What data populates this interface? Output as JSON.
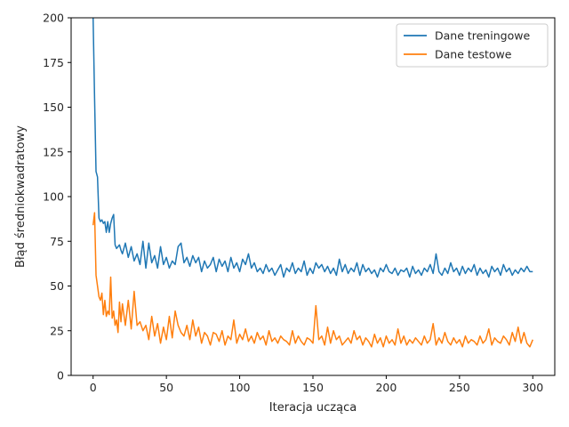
{
  "chart_data": {
    "type": "line",
    "title": "",
    "xlabel": "Iteracja ucząca",
    "ylabel": "Błąd średniokwadratowy",
    "xlim": [
      -15,
      315
    ],
    "ylim": [
      0,
      200
    ],
    "xticks": [
      0,
      50,
      100,
      150,
      200,
      250,
      300
    ],
    "yticks": [
      0,
      25,
      50,
      75,
      100,
      125,
      150,
      175,
      200
    ],
    "grid": false,
    "legend_position": "top-right",
    "series": [
      {
        "name": "Dane treningowe",
        "color": "#1f77b4",
        "x": [
          0,
          1,
          2,
          3,
          4,
          5,
          6,
          7,
          8,
          9,
          10,
          11,
          12,
          13,
          14,
          15,
          16,
          17,
          18,
          19,
          20,
          22,
          24,
          26,
          28,
          30,
          32,
          34,
          36,
          38,
          40,
          42,
          44,
          46,
          48,
          50,
          52,
          54,
          56,
          58,
          60,
          62,
          64,
          66,
          68,
          70,
          72,
          74,
          76,
          78,
          80,
          82,
          84,
          86,
          88,
          90,
          92,
          94,
          96,
          98,
          100,
          102,
          104,
          106,
          108,
          110,
          112,
          114,
          116,
          118,
          120,
          122,
          124,
          126,
          128,
          130,
          132,
          134,
          136,
          138,
          140,
          142,
          144,
          146,
          148,
          150,
          152,
          154,
          156,
          158,
          160,
          162,
          164,
          166,
          168,
          170,
          172,
          174,
          176,
          178,
          180,
          182,
          184,
          186,
          188,
          190,
          192,
          194,
          196,
          198,
          200,
          202,
          204,
          206,
          208,
          210,
          212,
          214,
          216,
          218,
          220,
          222,
          224,
          226,
          228,
          230,
          232,
          234,
          236,
          238,
          240,
          242,
          244,
          246,
          248,
          250,
          252,
          254,
          256,
          258,
          260,
          262,
          264,
          266,
          268,
          270,
          272,
          274,
          276,
          278,
          280,
          282,
          284,
          286,
          288,
          290,
          292,
          294,
          296,
          298,
          300
        ],
        "y": [
          200,
          155,
          114,
          111,
          88,
          86,
          87,
          85,
          86,
          80,
          86,
          80,
          85,
          88,
          90,
          73,
          71,
          72,
          73,
          70,
          68,
          74,
          66,
          72,
          64,
          68,
          62,
          75,
          60,
          74,
          63,
          67,
          60,
          72,
          62,
          66,
          60,
          64,
          62,
          72,
          74,
          63,
          66,
          61,
          67,
          63,
          66,
          58,
          64,
          60,
          62,
          66,
          58,
          65,
          61,
          64,
          58,
          66,
          60,
          63,
          58,
          65,
          62,
          68,
          60,
          63,
          58,
          60,
          57,
          62,
          58,
          60,
          56,
          59,
          62,
          55,
          60,
          58,
          63,
          57,
          60,
          58,
          64,
          56,
          60,
          57,
          63,
          60,
          62,
          58,
          61,
          57,
          60,
          56,
          65,
          58,
          62,
          57,
          60,
          58,
          63,
          56,
          62,
          58,
          60,
          57,
          59,
          55,
          60,
          58,
          62,
          58,
          57,
          60,
          56,
          59,
          58,
          60,
          55,
          61,
          57,
          59,
          56,
          60,
          58,
          62,
          57,
          68,
          58,
          56,
          60,
          57,
          63,
          58,
          60,
          56,
          61,
          57,
          60,
          58,
          62,
          56,
          60,
          57,
          59,
          55,
          61,
          58,
          60,
          56,
          62,
          58,
          60,
          56,
          59,
          57,
          60,
          58,
          61,
          58,
          58
        ]
      },
      {
        "name": "Dane testowe",
        "color": "#ff7f0e",
        "x": [
          0,
          1,
          2,
          3,
          4,
          5,
          6,
          7,
          8,
          9,
          10,
          11,
          12,
          13,
          14,
          15,
          16,
          17,
          18,
          19,
          20,
          22,
          24,
          26,
          28,
          30,
          32,
          34,
          36,
          38,
          40,
          42,
          44,
          46,
          48,
          50,
          52,
          54,
          56,
          58,
          60,
          62,
          64,
          66,
          68,
          70,
          72,
          74,
          76,
          78,
          80,
          82,
          84,
          86,
          88,
          90,
          92,
          94,
          96,
          98,
          100,
          102,
          104,
          106,
          108,
          110,
          112,
          114,
          116,
          118,
          120,
          122,
          124,
          126,
          128,
          130,
          132,
          134,
          136,
          138,
          140,
          142,
          144,
          146,
          148,
          150,
          152,
          154,
          156,
          158,
          160,
          162,
          164,
          166,
          168,
          170,
          172,
          174,
          176,
          178,
          180,
          182,
          184,
          186,
          188,
          190,
          192,
          194,
          196,
          198,
          200,
          202,
          204,
          206,
          208,
          210,
          212,
          214,
          216,
          218,
          220,
          222,
          224,
          226,
          228,
          230,
          232,
          234,
          236,
          238,
          240,
          242,
          244,
          246,
          248,
          250,
          252,
          254,
          256,
          258,
          260,
          262,
          264,
          266,
          268,
          270,
          272,
          274,
          276,
          278,
          280,
          282,
          284,
          286,
          288,
          290,
          292,
          294,
          296,
          298,
          300
        ],
        "y": [
          84,
          91,
          56,
          50,
          44,
          42,
          46,
          34,
          42,
          33,
          36,
          34,
          55,
          32,
          36,
          28,
          31,
          24,
          41,
          30,
          40,
          28,
          42,
          26,
          47,
          28,
          30,
          25,
          28,
          20,
          33,
          22,
          29,
          18,
          27,
          20,
          33,
          21,
          36,
          28,
          24,
          22,
          28,
          20,
          31,
          22,
          27,
          18,
          24,
          22,
          17,
          24,
          23,
          19,
          25,
          17,
          22,
          20,
          31,
          18,
          23,
          20,
          26,
          19,
          22,
          18,
          24,
          20,
          22,
          17,
          25,
          19,
          21,
          18,
          22,
          20,
          19,
          17,
          25,
          18,
          22,
          19,
          17,
          21,
          20,
          18,
          39,
          20,
          22,
          17,
          27,
          18,
          25,
          20,
          22,
          17,
          19,
          21,
          18,
          25,
          20,
          22,
          17,
          21,
          19,
          16,
          23,
          18,
          21,
          16,
          22,
          18,
          20,
          17,
          26,
          18,
          22,
          17,
          20,
          18,
          21,
          19,
          17,
          22,
          18,
          20,
          29,
          17,
          21,
          18,
          24,
          19,
          17,
          21,
          18,
          20,
          16,
          22,
          18,
          20,
          19,
          17,
          22,
          18,
          20,
          26,
          17,
          21,
          19,
          18,
          22,
          20,
          17,
          24,
          19,
          27,
          18,
          24,
          18,
          16,
          20
        ]
      }
    ]
  }
}
